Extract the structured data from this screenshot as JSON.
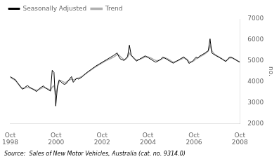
{
  "chart_data": {
    "type": "line",
    "ylabel": "no.",
    "annotations": [
      "Source:  Sales of New Motor Vehicles, Australia (cat. no. 9314.0)"
    ],
    "grid": false,
    "legend": "upper left",
    "xlim": [
      0,
      120
    ],
    "xticks": [
      {
        "value": 0,
        "label": "Oct\n1998"
      },
      {
        "value": 24,
        "label": "Oct\n2000"
      },
      {
        "value": 48,
        "label": "Oct\n2002"
      },
      {
        "value": 72,
        "label": "Oct\n2004"
      },
      {
        "value": 96,
        "label": "Oct\n2006"
      },
      {
        "value": 120,
        "label": "Oct\n2008"
      }
    ],
    "ylim": [
      2000,
      7000
    ],
    "yticks": [
      2000,
      3000,
      4000,
      5000,
      6000,
      7000
    ],
    "x": [
      0,
      0.916,
      1.8321,
      2.7481,
      3.6641,
      4.5802,
      5.4962,
      6.4122,
      7.3282,
      8.2443,
      9.1603,
      10.0763,
      10.9924,
      11.9084,
      12.8244,
      13.7405,
      14.6565,
      15.5725,
      16.4885,
      17.4046,
      18.3206,
      19.2366,
      20.1527,
      21.0687,
      21.9847,
      22.9008,
      23.8168,
      24.7328,
      25.6489,
      26.5649,
      27.4809,
      28.3969,
      29.313,
      30.229,
      31.145,
      32.0611,
      32.9771,
      33.8931,
      34.8092,
      35.7252,
      36.6412,
      37.5573,
      38.4733,
      39.3893,
      40.3053,
      41.2214,
      42.1374,
      43.0534,
      43.9695,
      44.8855,
      45.8015,
      46.7176,
      47.6336,
      48.5496,
      49.4656,
      50.3817,
      51.2977,
      52.2137,
      53.1298,
      54.0458,
      54.9618,
      55.8779,
      56.7939,
      57.7099,
      58.626,
      59.542,
      60.458,
      61.374,
      62.2901,
      63.2061,
      64.1221,
      65.0382,
      65.9542,
      66.8702,
      67.7863,
      68.7023,
      69.6183,
      70.5344,
      71.4504,
      72.3664,
      73.2824,
      74.1985,
      75.1145,
      76.0305,
      76.9466,
      77.8626,
      78.7786,
      79.6947,
      80.6107,
      81.5267,
      82.4427,
      83.3588,
      84.2748,
      85.1908,
      86.1069,
      87.0229,
      87.9389,
      88.855,
      89.771,
      90.687,
      91.6031,
      92.5191,
      93.4351,
      94.3511,
      95.2672,
      96.1832,
      97.0992,
      98.0153,
      98.9313,
      99.8473,
      100.7634,
      101.6794,
      102.5954,
      103.5115,
      104.4275,
      105.3435,
      106.2595,
      107.1756,
      108.0916,
      109.0076,
      109.9237,
      110.8397,
      111.7557,
      112.6718,
      113.5878,
      114.5038,
      115.4198,
      116.3359,
      117.2519,
      118.1679,
      119.084,
      120
    ],
    "series": [
      {
        "name": "Seasonally Adjusted",
        "color": "#000000",
        "values": [
          4250,
          4200,
          4150,
          4100,
          3980,
          3870,
          3750,
          3650,
          3700,
          3780,
          3820,
          3750,
          3700,
          3650,
          3600,
          3540,
          3620,
          3700,
          3760,
          3810,
          3720,
          3670,
          3610,
          3560,
          4550,
          4450,
          2850,
          3800,
          4100,
          4000,
          3920,
          3880,
          3920,
          4050,
          4150,
          4250,
          3980,
          4080,
          4180,
          4130,
          4180,
          4240,
          4320,
          4390,
          4460,
          4520,
          4580,
          4640,
          4700,
          4760,
          4810,
          4860,
          4910,
          4960,
          5010,
          5060,
          5110,
          5160,
          5210,
          5260,
          5320,
          5380,
          5200,
          5080,
          5050,
          5020,
          5120,
          5220,
          5750,
          5280,
          5180,
          5080,
          4990,
          5040,
          5090,
          5140,
          5190,
          5240,
          5190,
          5140,
          5090,
          5040,
          4980,
          4940,
          4980,
          5030,
          5080,
          5180,
          5140,
          5090,
          5040,
          4990,
          4940,
          4890,
          4940,
          4990,
          5040,
          5090,
          5140,
          5190,
          5090,
          5040,
          4880,
          4930,
          4980,
          5080,
          5180,
          5130,
          5220,
          5270,
          5320,
          5370,
          5430,
          5490,
          6050,
          5380,
          5320,
          5270,
          5220,
          5180,
          5130,
          5080,
          5020,
          4970,
          5070,
          5170,
          5180,
          5130,
          5080,
          5030,
          4980,
          4940
        ]
      },
      {
        "name": "Trend",
        "color": "#b0b0b0",
        "values": [
          4220,
          4170,
          4120,
          4070,
          3960,
          3860,
          3760,
          3700,
          3700,
          3720,
          3730,
          3710,
          3690,
          3660,
          3630,
          3600,
          3620,
          3660,
          3700,
          3740,
          3710,
          3680,
          3650,
          3610,
          3750,
          3820,
          3450,
          3750,
          4020,
          4060,
          4010,
          3970,
          3990,
          4040,
          4090,
          4140,
          4090,
          4120,
          4160,
          4190,
          4220,
          4260,
          4320,
          4380,
          4440,
          4500,
          4560,
          4620,
          4680,
          4730,
          4780,
          4830,
          4880,
          4930,
          4980,
          5020,
          5060,
          5100,
          5140,
          5180,
          5240,
          5300,
          5280,
          5190,
          5120,
          5060,
          5090,
          5170,
          5370,
          5260,
          5180,
          5100,
          5040,
          5060,
          5080,
          5110,
          5150,
          5190,
          5200,
          5180,
          5150,
          5110,
          5060,
          5020,
          5010,
          5030,
          5060,
          5120,
          5150,
          5130,
          5090,
          5040,
          4980,
          4940,
          4960,
          4990,
          5020,
          5060,
          5100,
          5150,
          5120,
          5070,
          4960,
          4950,
          4970,
          5020,
          5100,
          5130,
          5190,
          5230,
          5280,
          5330,
          5390,
          5460,
          5710,
          5490,
          5370,
          5290,
          5240,
          5190,
          5140,
          5090,
          5040,
          5000,
          5050,
          5130,
          5150,
          5130,
          5090,
          5040,
          4990,
          4950
        ]
      }
    ]
  }
}
